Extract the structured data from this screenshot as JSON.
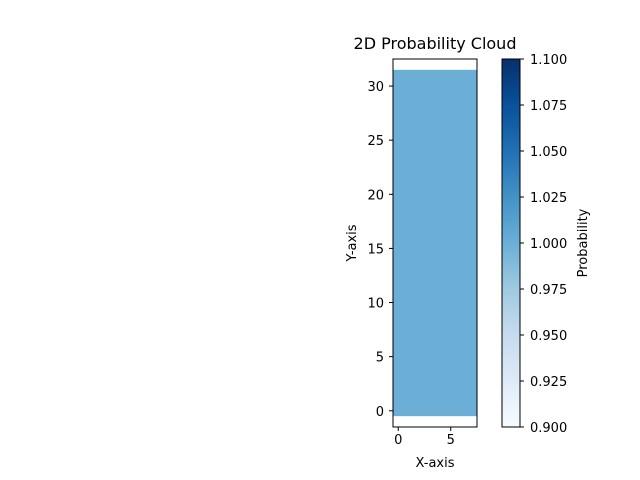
{
  "chart_data": {
    "type": "heatmap",
    "title": "2D Probability Cloud",
    "xlabel": "X-axis",
    "ylabel": "Y-axis",
    "xlim": [
      -0.5,
      7.5
    ],
    "ylim": [
      -1.5,
      32.5
    ],
    "x_ticks": [
      0,
      5
    ],
    "y_ticks": [
      0,
      5,
      10,
      15,
      20,
      25,
      30
    ],
    "cells": [
      {
        "x_range": [
          -0.5,
          7.5
        ],
        "y_range": [
          -0.5,
          31.5
        ],
        "value": 1.0
      }
    ],
    "cell_color": "#6baed6",
    "colorbar": {
      "label": "Probability",
      "colormap": "Blues",
      "range": [
        0.9,
        1.1
      ],
      "ticks": [
        "0.900",
        "0.925",
        "0.950",
        "0.975",
        "1.000",
        "1.025",
        "1.050",
        "1.075",
        "1.100"
      ],
      "color_low": "#f7fbff",
      "color_high": "#08306b"
    },
    "grid": false
  }
}
